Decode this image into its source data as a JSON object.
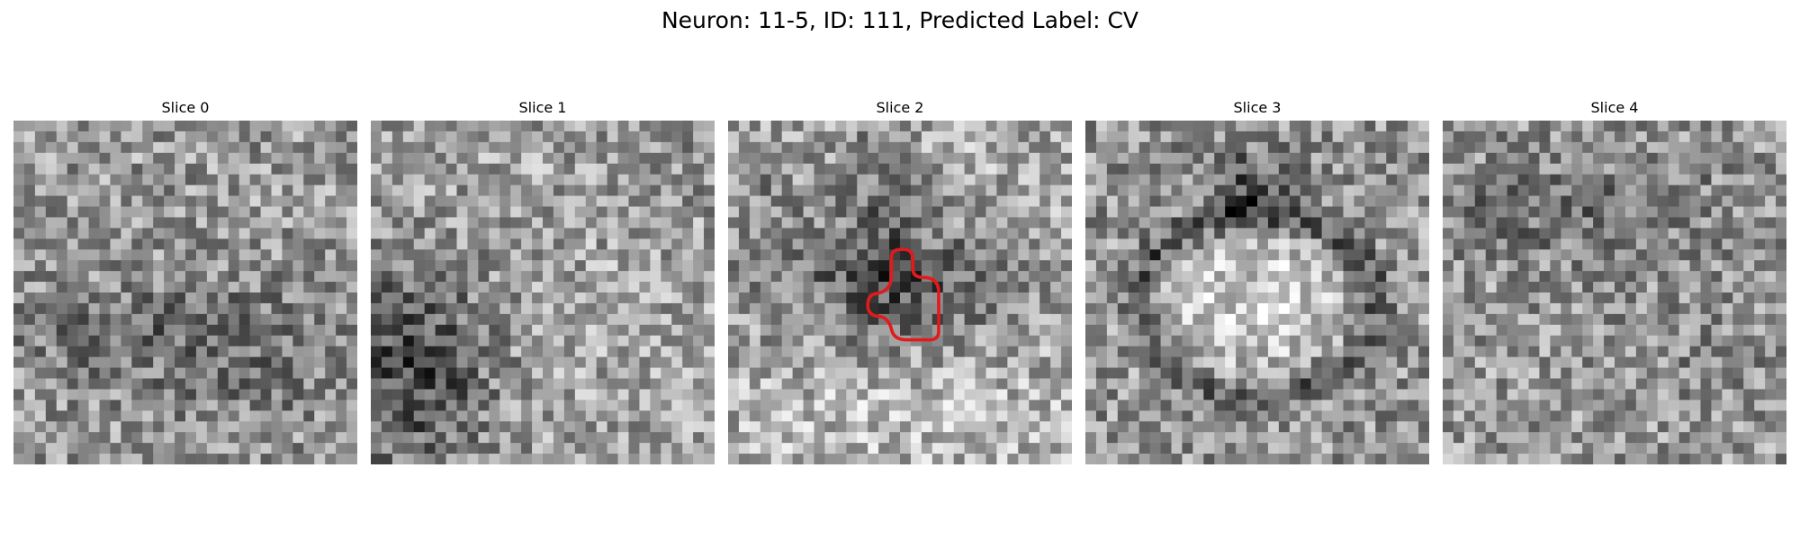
{
  "figure": {
    "title": "Neuron: 11-5, ID: 111, Predicted Label: CV",
    "colormap": "gray",
    "grid_size": 32
  },
  "slices": [
    {
      "label": "Slice 0",
      "seed": 11,
      "pattern": "noise_dark_lower_band"
    },
    {
      "label": "Slice 1",
      "seed": 27,
      "pattern": "noise_dark_lower_left"
    },
    {
      "label": "Slice 2",
      "seed": 53,
      "pattern": "dark_center_cross",
      "contour_color": "#e31a1c"
    },
    {
      "label": "Slice 3",
      "seed": 79,
      "pattern": "dark_ring_bright_core"
    },
    {
      "label": "Slice 4",
      "seed": 101,
      "pattern": "noise_dark_upper_band"
    }
  ]
}
